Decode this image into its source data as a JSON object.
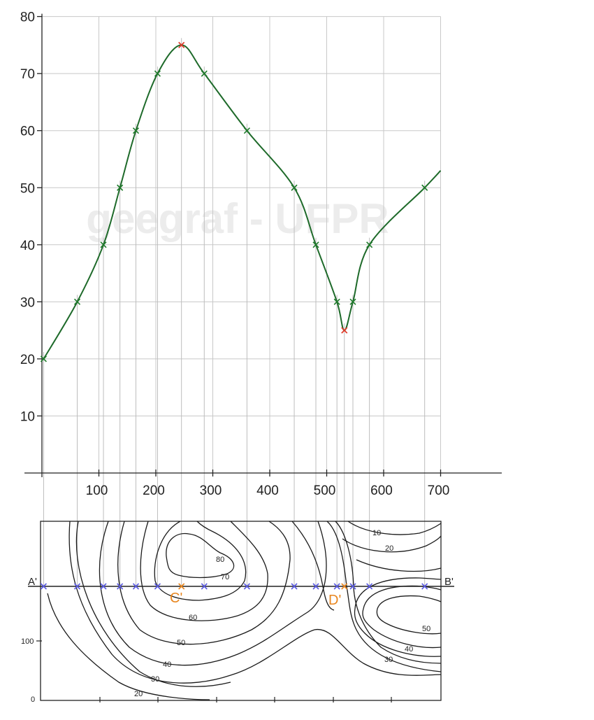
{
  "watermark": "geegraf - UFPR",
  "profile": {
    "type": "line",
    "title": "",
    "xlabel": "",
    "ylabel": "",
    "x_ticks": [
      100,
      200,
      300,
      400,
      500,
      600,
      700
    ],
    "y_ticks": [
      10,
      20,
      30,
      40,
      50,
      60,
      70,
      80
    ],
    "xlim": [
      0,
      700
    ],
    "ylim": [
      0,
      80
    ],
    "points": [
      {
        "x": 3,
        "y": 20
      },
      {
        "x": 62,
        "y": 30
      },
      {
        "x": 108,
        "y": 40
      },
      {
        "x": 137,
        "y": 50
      },
      {
        "x": 165,
        "y": 60
      },
      {
        "x": 203,
        "y": 70
      },
      {
        "x": 245,
        "y": 75,
        "peak": true
      },
      {
        "x": 285,
        "y": 70
      },
      {
        "x": 360,
        "y": 60
      },
      {
        "x": 443,
        "y": 50
      },
      {
        "x": 481,
        "y": 40
      },
      {
        "x": 518,
        "y": 30
      },
      {
        "x": 531,
        "y": 25,
        "peak": true
      },
      {
        "x": 546,
        "y": 30
      },
      {
        "x": 575,
        "y": 40
      },
      {
        "x": 672,
        "y": 50
      },
      {
        "x": 700,
        "y": 53
      }
    ],
    "colors": {
      "line": "#1e6a2a",
      "marker": "#1e7a2a",
      "extreme": "#e03a2a",
      "grid": "#c8c8c8",
      "guide": "#bdbdbd"
    }
  },
  "map": {
    "section_start": "A'",
    "section_end": "B'",
    "points": [
      "C'",
      "D'"
    ],
    "y_ticks": [
      "100",
      "0"
    ],
    "contour_labels": [
      "80",
      "70",
      "60",
      "50",
      "40",
      "30",
      "20",
      "10",
      "20",
      "50",
      "40",
      "30"
    ],
    "colors": {
      "section_marker": "#5a5ae0",
      "special_marker": "#e8861f"
    }
  }
}
